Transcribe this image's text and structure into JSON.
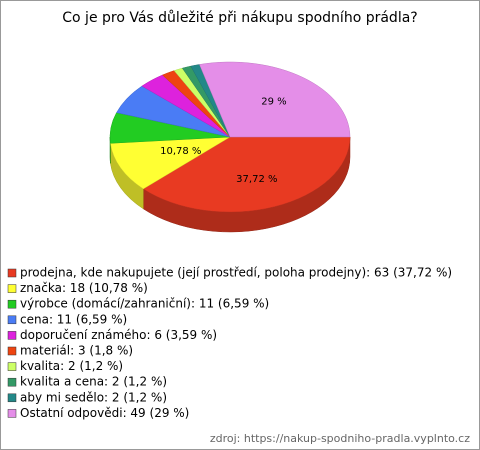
{
  "chart_data": {
    "type": "pie",
    "title": "Co je pro Vás důležité při nákupu spodního prádla?",
    "categories": [
      "prodejna, kde nakupujete (její prostředí, poloha prodejny)",
      "značka",
      "výrobce (domácí/zahraniční)",
      "cena",
      "doporučení známého",
      "materiál",
      "kvalita",
      "kvalita a cena",
      "aby mi sedělo",
      "Ostatní odpovědi"
    ],
    "values": [
      37.72,
      10.78,
      6.59,
      6.59,
      3.59,
      1.8,
      1.2,
      1.2,
      1.2,
      29
    ],
    "value_labels": [
      "37,72 %",
      "10,78 %",
      null,
      null,
      null,
      null,
      null,
      null,
      null,
      "29 %"
    ],
    "legend_labels": [
      "prodejna, kde nakupujete (její prostředí, poloha prodejny): 63 (37,72 %)",
      "značka: 18 (10,78 %)",
      "výrobce (domácí/zahraniční): 11 (6,59 %)",
      "cena: 11 (6,59 %)",
      "doporučení známého: 6 (3,59 %)",
      "materiál: 3 (1,8 %)",
      "kvalita: 2 (1,2 %)",
      "kvalita a cena: 2 (1,2 %)",
      "aby mi sedělo: 2 (1,2 %)",
      "Ostatní odpovědi: 49 (29 %)"
    ],
    "colors": [
      "#e83a22",
      "#ffff33",
      "#22cc22",
      "#4a7cf5",
      "#dd22dd",
      "#ee4411",
      "#ccff66",
      "#339966",
      "#228888",
      "#e48ee8"
    ],
    "source": "zdroj: https://nakup-spodniho-pradla.vyplnto.cz"
  }
}
